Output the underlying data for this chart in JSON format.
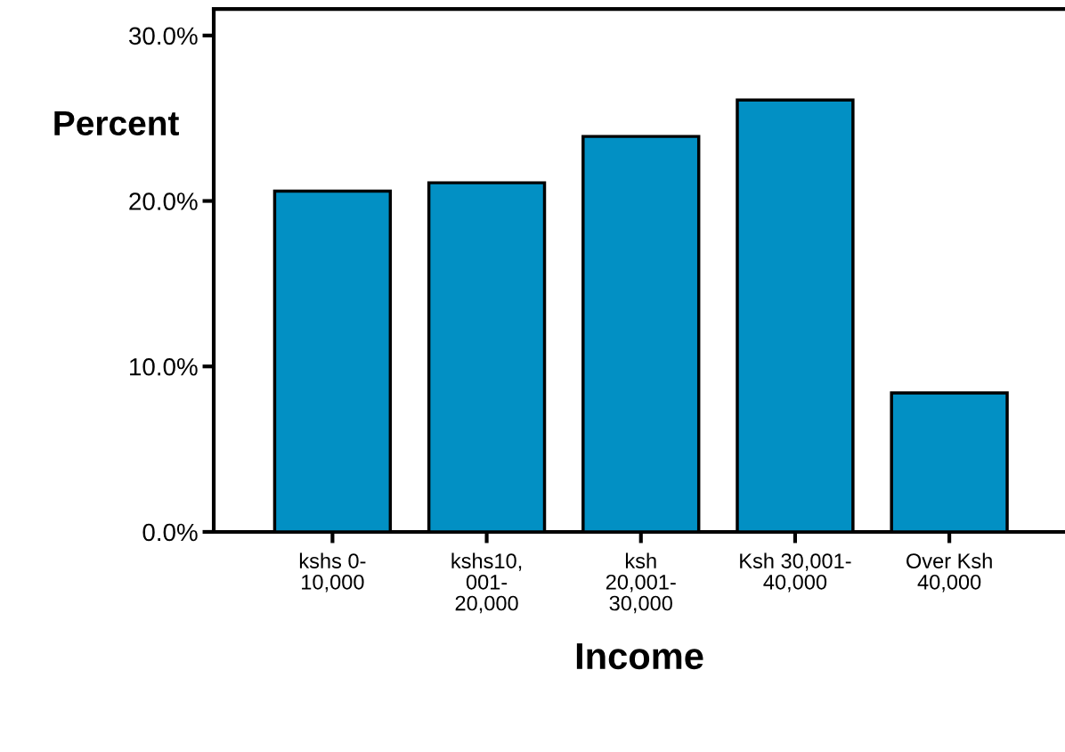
{
  "chart_data": {
    "type": "bar",
    "xlabel": "Income",
    "ylabel": "Percent",
    "categories": [
      "kshs 0-\n10,000",
      "kshs10,\n001-\n20,000",
      "ksh\n20,001-\n30,000",
      "Ksh 30,001-\n40,000",
      "Over Ksh\n40,000"
    ],
    "values": [
      20.6,
      21.1,
      23.9,
      26.1,
      8.4
    ],
    "color": "#0290c4",
    "ylim": [
      0,
      31.6
    ],
    "yticks": [
      {
        "value": 0,
        "label": "0.0%"
      },
      {
        "value": 10,
        "label": "10.0%"
      },
      {
        "value": 20,
        "label": "20.0%"
      },
      {
        "value": 30,
        "label": "30.0%"
      }
    ],
    "grid": false,
    "legend": false
  }
}
